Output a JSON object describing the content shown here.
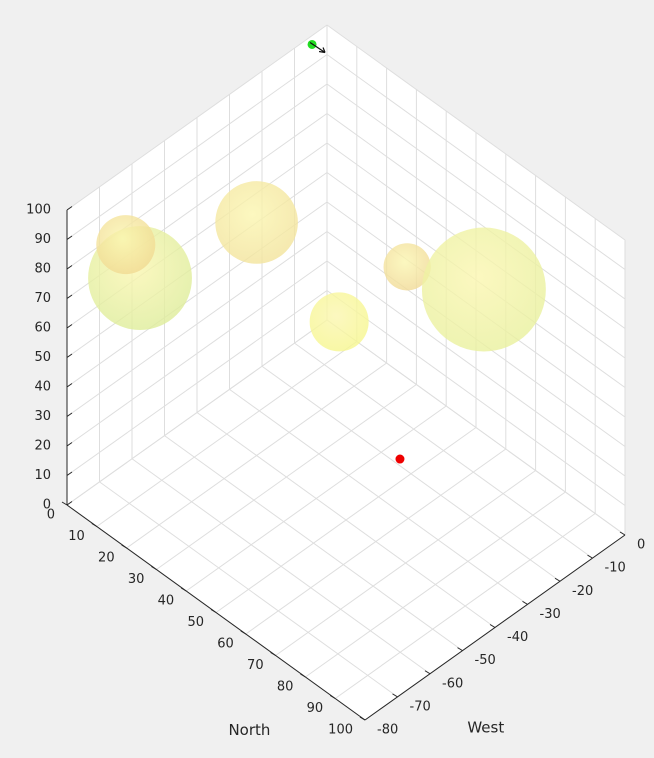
{
  "chart_data": {
    "type": "scatter3d",
    "xlabel": "North",
    "ylabel": "West",
    "xlim": [
      0,
      100
    ],
    "ylim": [
      -80,
      0
    ],
    "zlim": [
      0,
      100
    ],
    "xticks": [
      0,
      10,
      20,
      30,
      40,
      50,
      60,
      70,
      80,
      90,
      100
    ],
    "yticks": [
      -80,
      -70,
      -60,
      -50,
      -40,
      -30,
      -20,
      -10,
      0
    ],
    "zticks": [
      0,
      10,
      20,
      30,
      40,
      50,
      60,
      70,
      80,
      90,
      100
    ],
    "grid": true,
    "spheres": {
      "north": [
        13.6,
        11,
        20,
        47.7,
        37.8,
        58.1
      ],
      "west": [
        -70,
        -72,
        -40,
        -40,
        -10,
        -5
      ],
      "z": [
        79,
        90,
        79,
        65.5,
        53.4,
        56.6
      ],
      "radius": [
        17.6,
        10,
        14,
        10,
        8,
        21
      ],
      "colors": [
        "#dcec98",
        "#f0d890",
        "#f2e29a",
        "#f6f78c",
        "#f0d894",
        "#e8f09c"
      ]
    },
    "markers": {
      "north": [
        46.3,
        0
      ],
      "west": [
        -20,
        -4.6
      ],
      "z": [
        2.3,
        97
      ],
      "colors": [
        "#ee0000",
        "#22dd22"
      ]
    }
  }
}
